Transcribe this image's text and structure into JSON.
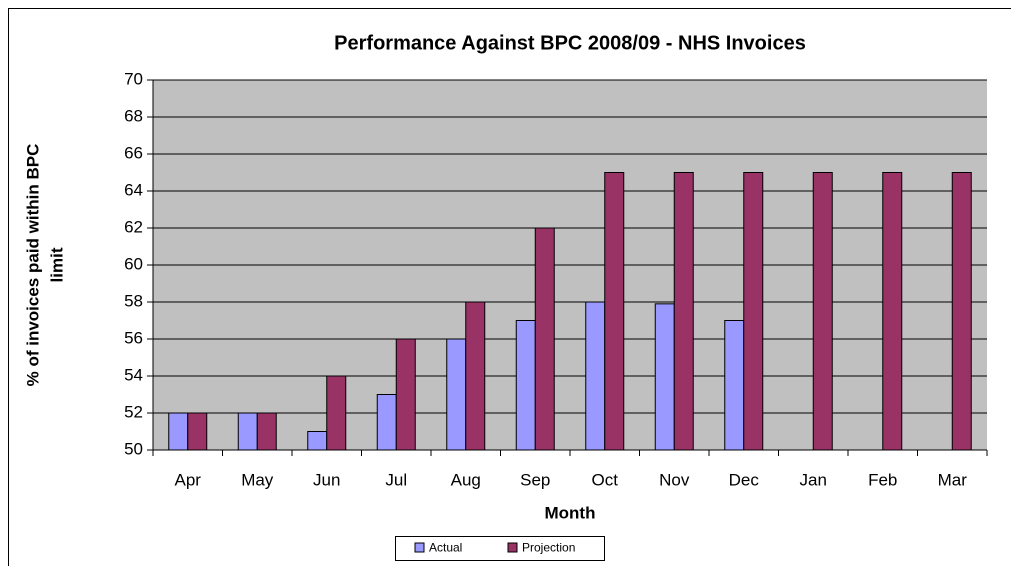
{
  "chart_data": {
    "type": "bar",
    "title": "Performance Against BPC 2008/09 - NHS Invoices",
    "xlabel": "Month",
    "ylabel": [
      "% of invoices paid within BPC",
      "limit"
    ],
    "categories": [
      "Apr",
      "May",
      "Jun",
      "Jul",
      "Aug",
      "Sep",
      "Oct",
      "Nov",
      "Dec",
      "Jan",
      "Feb",
      "Mar"
    ],
    "series": [
      {
        "name": "Actual",
        "color": "#9999ff",
        "values": [
          52,
          52,
          51,
          53,
          56,
          57,
          58,
          57.9,
          57,
          null,
          null,
          null
        ]
      },
      {
        "name": "Projection",
        "color": "#993366",
        "values": [
          52,
          52,
          54,
          56,
          58,
          62,
          65,
          65,
          65,
          65,
          65,
          65
        ]
      }
    ],
    "ylim": [
      50,
      70
    ],
    "yticks": [
      50,
      52,
      54,
      56,
      58,
      60,
      62,
      64,
      66,
      68,
      70
    ],
    "grid": true,
    "legend": "bottom"
  }
}
